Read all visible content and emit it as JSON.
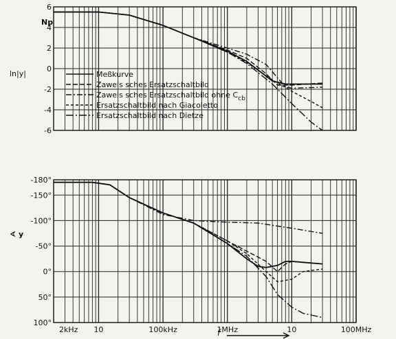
{
  "chart_data": [
    {
      "type": "line",
      "panel": "magnitude",
      "ylabel": "ln|y|",
      "unit_label": "Np",
      "x_scale": "log",
      "xlim": [
        2000,
        100000000
      ],
      "ylim": [
        -6,
        6
      ],
      "yticks": [
        -6,
        -4,
        -2,
        0,
        2,
        4,
        6
      ],
      "ytick_labels": [
        "-6",
        "-4",
        "-2",
        "0",
        "2",
        "4",
        "6"
      ],
      "grid": true,
      "legend_position": "bottom-left",
      "series": [
        {
          "name": "Meßkurve",
          "dash": "solid",
          "x": [
            2000,
            10000,
            30000,
            100000,
            300000,
            1000000,
            2000000,
            5000000,
            8000000,
            10000000,
            30000000
          ],
          "y": [
            5.5,
            5.5,
            5.2,
            4.2,
            3.0,
            1.7,
            0.7,
            -1.2,
            -1.5,
            -1.5,
            -1.5
          ]
        },
        {
          "name": "Zawels sches Ersatzschaltbild",
          "dash": "dashed",
          "x": [
            2000,
            10000,
            30000,
            100000,
            300000,
            1000000,
            2000000,
            4000000,
            6000000,
            10000000,
            30000000
          ],
          "y": [
            5.5,
            5.5,
            5.2,
            4.2,
            3.0,
            1.8,
            1.0,
            -0.5,
            -1.6,
            -1.6,
            -1.4
          ]
        },
        {
          "name": "Zawels sches Ersatzschaltbild ohne Ccb",
          "dash": "dashdot",
          "x": [
            2000,
            10000,
            30000,
            100000,
            300000,
            1000000,
            2000000,
            4000000,
            8000000,
            10000000,
            30000000
          ],
          "y": [
            5.5,
            5.5,
            5.2,
            4.2,
            3.0,
            2.0,
            1.4,
            0.4,
            -1.8,
            -1.9,
            -1.8
          ]
        },
        {
          "name": "Ersatzschaltbild nach Giacoletto",
          "dash": "shortdash",
          "x": [
            2000,
            10000,
            30000,
            100000,
            300000,
            1000000,
            2000000,
            5000000,
            10000000,
            20000000,
            30000000
          ],
          "y": [
            5.5,
            5.5,
            5.2,
            4.2,
            3.0,
            1.6,
            0.6,
            -1.1,
            -2.2,
            -3.2,
            -3.8
          ]
        },
        {
          "name": "Ersatzschaltbild nach Dietze",
          "dash": "longdashdot",
          "x": [
            2000,
            10000,
            30000,
            100000,
            300000,
            1000000,
            2000000,
            5000000,
            10000000,
            20000000,
            30000000
          ],
          "y": [
            5.5,
            5.5,
            5.2,
            4.2,
            3.0,
            1.6,
            0.5,
            -1.5,
            -3.4,
            -5.2,
            -6.0
          ]
        }
      ],
      "legend": {
        "entries": [
          "Meßkurve",
          "Zawels sches Ersatzschaltbild",
          "Zawels sches Ersatzschaltbild ohne C",
          "Ersatzschaltbild nach Giacoletto",
          "Ersatzschaltbild nach Dietze"
        ],
        "subscript": "cb"
      }
    },
    {
      "type": "line",
      "panel": "phase",
      "ylabel": "∢ y",
      "x_scale": "log",
      "xlim": [
        2000,
        100000000
      ],
      "ylim": [
        -180,
        100
      ],
      "y_inverted": true,
      "yticks": [
        -180,
        -150,
        -100,
        -50,
        0,
        50,
        100
      ],
      "ytick_labels": [
        "-180°",
        "-150°",
        "-100°",
        "-50°",
        "0°",
        "50°",
        "100°"
      ],
      "xtick_labels": [
        {
          "x": 2000,
          "label": "2kHz"
        },
        {
          "x": 10000,
          "label": "10"
        },
        {
          "x": 100000,
          "label": "100kHz"
        },
        {
          "x": 1000000,
          "label": "1MHz"
        },
        {
          "x": 10000000,
          "label": "10"
        },
        {
          "x": 100000000,
          "label": "100MHz"
        }
      ],
      "xlabel": "f",
      "grid": true,
      "series": [
        {
          "name": "Meßkurve",
          "dash": "solid",
          "x": [
            2000,
            8000,
            15000,
            30000,
            100000,
            300000,
            1000000,
            2000000,
            3000000,
            4000000,
            6000000,
            8000000,
            10000000,
            15000000,
            30000000
          ],
          "y": [
            -175,
            -175,
            -170,
            -145,
            -115,
            -95,
            -55,
            -25,
            -10,
            -8,
            -12,
            -20,
            -20,
            -18,
            -15
          ]
        },
        {
          "name": "Zawels sches Ersatzschaltbild",
          "dash": "dashed",
          "x": [
            2000,
            8000,
            15000,
            30000,
            100000,
            300000,
            1000000,
            2000000,
            4000000,
            6000000,
            8000000,
            10000000,
            15000000,
            30000000
          ],
          "y": [
            -175,
            -175,
            -170,
            -145,
            -115,
            -95,
            -60,
            -40,
            -20,
            0,
            -15,
            -20,
            -18,
            -15
          ]
        },
        {
          "name": "Zawels sches Ersatzschaltbild ohne Ccb",
          "dash": "dashdot",
          "x": [
            2000,
            8000,
            15000,
            30000,
            100000,
            300000,
            1000000,
            3000000,
            10000000,
            30000000
          ],
          "y": [
            -175,
            -175,
            -170,
            -145,
            -112,
            -100,
            -97,
            -95,
            -85,
            -75
          ]
        },
        {
          "name": "Ersatzschaltbild nach Giacoletto",
          "dash": "shortdash",
          "x": [
            2000,
            8000,
            15000,
            30000,
            100000,
            300000,
            1000000,
            2000000,
            4000000,
            6000000,
            10000000,
            15000000,
            30000000
          ],
          "y": [
            -175,
            -175,
            -170,
            -145,
            -115,
            -95,
            -60,
            -35,
            0,
            20,
            15,
            0,
            -5
          ]
        },
        {
          "name": "Ersatzschaltbild nach Dietze",
          "dash": "longdashdot",
          "x": [
            2000,
            8000,
            15000,
            30000,
            100000,
            300000,
            1000000,
            2000000,
            4000000,
            6000000,
            10000000,
            15000000,
            30000000
          ],
          "y": [
            -175,
            -175,
            -170,
            -145,
            -115,
            -95,
            -55,
            -30,
            10,
            45,
            70,
            82,
            90
          ]
        }
      ]
    }
  ]
}
